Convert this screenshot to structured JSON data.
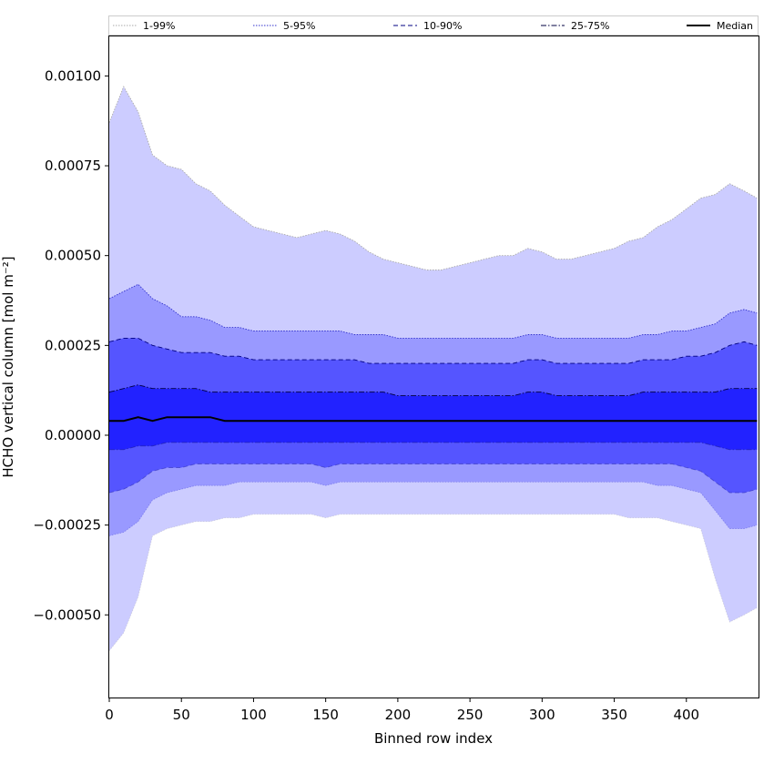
{
  "chart_data": {
    "type": "area",
    "title": "",
    "xlabel": "Binned row index",
    "ylabel": "HCHO vertical column [mol m⁻²]",
    "xlim": [
      0,
      450
    ],
    "ylim": [
      -0.00073,
      0.00111
    ],
    "x_ticks": [
      0,
      50,
      100,
      150,
      200,
      250,
      300,
      350,
      400
    ],
    "y_ticks": [
      -0.0005,
      -0.00025,
      0.0,
      0.00025,
      0.0005,
      0.00075,
      0.001
    ],
    "x_tick_labels": [
      "0",
      "50",
      "100",
      "150",
      "200",
      "250",
      "300",
      "350",
      "400"
    ],
    "y_tick_labels": [
      "−0.00050",
      "−0.00025",
      "0.00000",
      "0.00025",
      "0.00050",
      "0.00075",
      "0.00100"
    ],
    "grid": false,
    "legend_position": "top",
    "x": [
      0,
      10,
      20,
      30,
      40,
      50,
      60,
      70,
      80,
      90,
      100,
      110,
      120,
      130,
      140,
      150,
      160,
      170,
      180,
      190,
      200,
      210,
      220,
      230,
      240,
      250,
      260,
      270,
      280,
      290,
      300,
      310,
      320,
      330,
      340,
      350,
      360,
      370,
      380,
      390,
      400,
      410,
      420,
      430,
      440,
      449
    ],
    "series": [
      {
        "name": "1-99%",
        "color": "#ccccff",
        "line_color": "#aaaaaa",
        "line_style": "dotted",
        "lower": [
          -0.0006,
          -0.00055,
          -0.00045,
          -0.00028,
          -0.00026,
          -0.00025,
          -0.00024,
          -0.00024,
          -0.00023,
          -0.00023,
          -0.00022,
          -0.00022,
          -0.00022,
          -0.00022,
          -0.00022,
          -0.00023,
          -0.00022,
          -0.00022,
          -0.00022,
          -0.00022,
          -0.00022,
          -0.00022,
          -0.00022,
          -0.00022,
          -0.00022,
          -0.00022,
          -0.00022,
          -0.00022,
          -0.00022,
          -0.00022,
          -0.00022,
          -0.00022,
          -0.00022,
          -0.00022,
          -0.00022,
          -0.00022,
          -0.00023,
          -0.00023,
          -0.00023,
          -0.00024,
          -0.00025,
          -0.00026,
          -0.0004,
          -0.00052,
          -0.0005,
          -0.00048
        ],
        "upper": [
          0.00087,
          0.00097,
          0.0009,
          0.00078,
          0.00075,
          0.00074,
          0.0007,
          0.00068,
          0.00064,
          0.00061,
          0.00058,
          0.00057,
          0.00056,
          0.00055,
          0.00056,
          0.00057,
          0.00056,
          0.00054,
          0.00051,
          0.00049,
          0.00048,
          0.00047,
          0.00046,
          0.00046,
          0.00047,
          0.00048,
          0.00049,
          0.0005,
          0.0005,
          0.00052,
          0.00051,
          0.00049,
          0.00049,
          0.0005,
          0.00051,
          0.00052,
          0.00054,
          0.00055,
          0.00058,
          0.0006,
          0.00063,
          0.00066,
          0.00067,
          0.0007,
          0.00068,
          0.00066
        ]
      },
      {
        "name": "5-95%",
        "color": "#9999ff",
        "line_color": "#3333cc",
        "line_style": "dotted",
        "lower": [
          -0.00028,
          -0.00027,
          -0.00024,
          -0.00018,
          -0.00016,
          -0.00015,
          -0.00014,
          -0.00014,
          -0.00014,
          -0.00013,
          -0.00013,
          -0.00013,
          -0.00013,
          -0.00013,
          -0.00013,
          -0.00014,
          -0.00013,
          -0.00013,
          -0.00013,
          -0.00013,
          -0.00013,
          -0.00013,
          -0.00013,
          -0.00013,
          -0.00013,
          -0.00013,
          -0.00013,
          -0.00013,
          -0.00013,
          -0.00013,
          -0.00013,
          -0.00013,
          -0.00013,
          -0.00013,
          -0.00013,
          -0.00013,
          -0.00013,
          -0.00013,
          -0.00014,
          -0.00014,
          -0.00015,
          -0.00016,
          -0.00021,
          -0.00026,
          -0.00026,
          -0.00025
        ],
        "upper": [
          0.00038,
          0.0004,
          0.00042,
          0.00038,
          0.00036,
          0.00033,
          0.00033,
          0.00032,
          0.0003,
          0.0003,
          0.00029,
          0.00029,
          0.00029,
          0.00029,
          0.00029,
          0.00029,
          0.00029,
          0.00028,
          0.00028,
          0.00028,
          0.00027,
          0.00027,
          0.00027,
          0.00027,
          0.00027,
          0.00027,
          0.00027,
          0.00027,
          0.00027,
          0.00028,
          0.00028,
          0.00027,
          0.00027,
          0.00027,
          0.00027,
          0.00027,
          0.00027,
          0.00028,
          0.00028,
          0.00029,
          0.00029,
          0.0003,
          0.00031,
          0.00034,
          0.00035,
          0.00034
        ]
      },
      {
        "name": "10-90%",
        "color": "#5555ff",
        "line_color": "#000080",
        "line_style": "dashed",
        "lower": [
          -0.00016,
          -0.00015,
          -0.00013,
          -0.0001,
          -9e-05,
          -9e-05,
          -8e-05,
          -8e-05,
          -8e-05,
          -8e-05,
          -8e-05,
          -8e-05,
          -8e-05,
          -8e-05,
          -8e-05,
          -9e-05,
          -8e-05,
          -8e-05,
          -8e-05,
          -8e-05,
          -8e-05,
          -8e-05,
          -8e-05,
          -8e-05,
          -8e-05,
          -8e-05,
          -8e-05,
          -8e-05,
          -8e-05,
          -8e-05,
          -8e-05,
          -8e-05,
          -8e-05,
          -8e-05,
          -8e-05,
          -8e-05,
          -8e-05,
          -8e-05,
          -8e-05,
          -8e-05,
          -9e-05,
          -0.0001,
          -0.00013,
          -0.00016,
          -0.00016,
          -0.00015
        ],
        "upper": [
          0.00026,
          0.00027,
          0.00027,
          0.00025,
          0.00024,
          0.00023,
          0.00023,
          0.00023,
          0.00022,
          0.00022,
          0.00021,
          0.00021,
          0.00021,
          0.00021,
          0.00021,
          0.00021,
          0.00021,
          0.00021,
          0.0002,
          0.0002,
          0.0002,
          0.0002,
          0.0002,
          0.0002,
          0.0002,
          0.0002,
          0.0002,
          0.0002,
          0.0002,
          0.00021,
          0.00021,
          0.0002,
          0.0002,
          0.0002,
          0.0002,
          0.0002,
          0.0002,
          0.00021,
          0.00021,
          0.00021,
          0.00022,
          0.00022,
          0.00023,
          0.00025,
          0.00026,
          0.00025
        ]
      },
      {
        "name": "25-75%",
        "color": "#2222ff",
        "line_color": "#000040",
        "line_style": "dashdot",
        "lower": [
          -4e-05,
          -4e-05,
          -3e-05,
          -3e-05,
          -2e-05,
          -2e-05,
          -2e-05,
          -2e-05,
          -2e-05,
          -2e-05,
          -2e-05,
          -2e-05,
          -2e-05,
          -2e-05,
          -2e-05,
          -2e-05,
          -2e-05,
          -2e-05,
          -2e-05,
          -2e-05,
          -2e-05,
          -2e-05,
          -2e-05,
          -2e-05,
          -2e-05,
          -2e-05,
          -2e-05,
          -2e-05,
          -2e-05,
          -2e-05,
          -2e-05,
          -2e-05,
          -2e-05,
          -2e-05,
          -2e-05,
          -2e-05,
          -2e-05,
          -2e-05,
          -2e-05,
          -2e-05,
          -2e-05,
          -2e-05,
          -3e-05,
          -4e-05,
          -4e-05,
          -4e-05
        ],
        "upper": [
          0.00012,
          0.00013,
          0.00014,
          0.00013,
          0.00013,
          0.00013,
          0.00013,
          0.00012,
          0.00012,
          0.00012,
          0.00012,
          0.00012,
          0.00012,
          0.00012,
          0.00012,
          0.00012,
          0.00012,
          0.00012,
          0.00012,
          0.00012,
          0.00011,
          0.00011,
          0.00011,
          0.00011,
          0.00011,
          0.00011,
          0.00011,
          0.00011,
          0.00011,
          0.00012,
          0.00012,
          0.00011,
          0.00011,
          0.00011,
          0.00011,
          0.00011,
          0.00011,
          0.00012,
          0.00012,
          0.00012,
          0.00012,
          0.00012,
          0.00012,
          0.00013,
          0.00013,
          0.00013
        ]
      },
      {
        "name": "Median",
        "color": "#000000",
        "line_style": "solid",
        "values": [
          4e-05,
          4e-05,
          5e-05,
          4e-05,
          5e-05,
          5e-05,
          5e-05,
          5e-05,
          4e-05,
          4e-05,
          4e-05,
          4e-05,
          4e-05,
          4e-05,
          4e-05,
          4e-05,
          4e-05,
          4e-05,
          4e-05,
          4e-05,
          4e-05,
          4e-05,
          4e-05,
          4e-05,
          4e-05,
          4e-05,
          4e-05,
          4e-05,
          4e-05,
          4e-05,
          4e-05,
          4e-05,
          4e-05,
          4e-05,
          4e-05,
          4e-05,
          4e-05,
          4e-05,
          4e-05,
          4e-05,
          4e-05,
          4e-05,
          4e-05,
          4e-05,
          4e-05,
          4e-05
        ]
      }
    ]
  }
}
